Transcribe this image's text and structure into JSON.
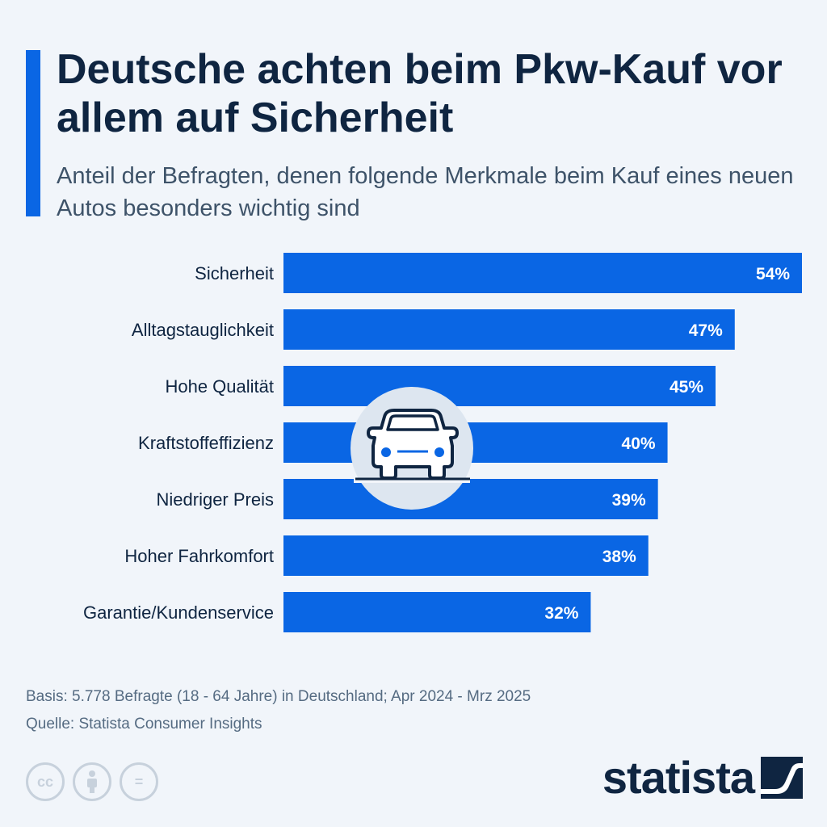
{
  "header": {
    "title": "Deutsche achten beim Pkw-Kauf vor allem auf Sicherheit",
    "subtitle": "Anteil der Befragten, denen folgende Merkmale beim Kauf eines neuen Autos besonders wichtig sind"
  },
  "chart_data": {
    "type": "bar",
    "orientation": "horizontal",
    "categories": [
      "Sicherheit",
      "Alltagstauglichkeit",
      "Hohe Qualität",
      "Kraftstoffeffizienz",
      "Niedriger Preis",
      "Hoher Fahrkomfort",
      "Garantie/Kundenservice"
    ],
    "values": [
      54,
      47,
      45,
      40,
      39,
      38,
      32
    ],
    "value_labels": [
      "54%",
      "47%",
      "45%",
      "40%",
      "39%",
      "38%",
      "32%"
    ],
    "unit": "%",
    "bar_color": "#0a66e4",
    "grid": false,
    "legend": "none",
    "decoration_icon": "car-icon"
  },
  "footer": {
    "basis": "Basis: 5.778 Befragte (18 - 64 Jahre) in Deutschland; Apr 2024 - Mrz 2025",
    "source": "Quelle: Statista Consumer Insights",
    "license_icons": [
      "cc-icon",
      "attribution-icon",
      "no-derivatives-icon"
    ],
    "license_glyphs": [
      "cc",
      "",
      "="
    ]
  },
  "brand": {
    "name": "statista",
    "color": "#0f2541",
    "accent": "#0a66e4"
  }
}
